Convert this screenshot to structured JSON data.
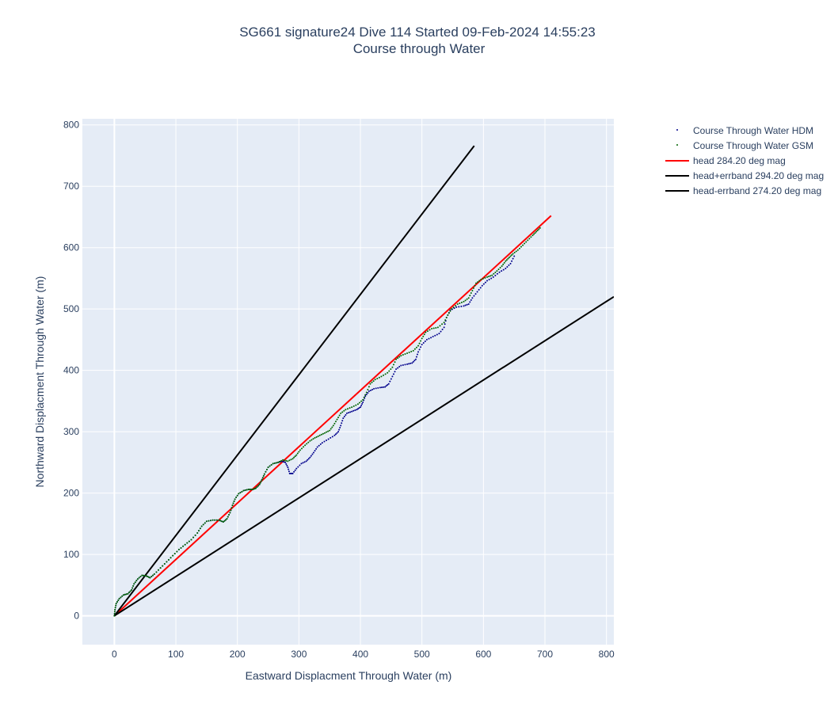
{
  "chart_data": {
    "type": "scatter",
    "title": "SG661 signature24 Dive 114 Started 09-Feb-2024 14:55:23",
    "subtitle": "Course through Water",
    "xlabel": "Eastward Displacment Through Water (m)",
    "ylabel": "Northward Displacment Through Water (m)",
    "xlim": [
      -52,
      812
    ],
    "ylim": [
      -47,
      810
    ],
    "xticks": [
      0,
      100,
      200,
      300,
      400,
      500,
      600,
      700,
      800
    ],
    "yticks": [
      0,
      100,
      200,
      300,
      400,
      500,
      600,
      700,
      800
    ],
    "grid": true,
    "legend_position": "top-right",
    "series": [
      {
        "name": "Course Through Water HDM",
        "mode": "markers",
        "color": "#00008b",
        "points": [
          [
            0,
            0
          ],
          [
            1,
            10
          ],
          [
            3,
            20
          ],
          [
            8,
            28
          ],
          [
            15,
            34
          ],
          [
            22,
            36
          ],
          [
            28,
            42
          ],
          [
            32,
            52
          ],
          [
            38,
            60
          ],
          [
            45,
            66
          ],
          [
            52,
            65
          ],
          [
            58,
            62
          ],
          [
            65,
            68
          ],
          [
            75,
            78
          ],
          [
            85,
            88
          ],
          [
            95,
            98
          ],
          [
            105,
            108
          ],
          [
            115,
            116
          ],
          [
            125,
            124
          ],
          [
            135,
            135
          ],
          [
            142,
            146
          ],
          [
            150,
            154
          ],
          [
            160,
            156
          ],
          [
            170,
            156
          ],
          [
            177,
            153
          ],
          [
            183,
            158
          ],
          [
            188,
            168
          ],
          [
            192,
            180
          ],
          [
            196,
            190
          ],
          [
            202,
            199
          ],
          [
            210,
            204
          ],
          [
            218,
            206
          ],
          [
            225,
            206
          ],
          [
            230,
            208
          ],
          [
            236,
            214
          ],
          [
            240,
            222
          ],
          [
            244,
            231
          ],
          [
            250,
            242
          ],
          [
            258,
            248
          ],
          [
            266,
            250
          ],
          [
            272,
            252
          ],
          [
            278,
            250
          ],
          [
            282,
            242
          ],
          [
            285,
            232
          ],
          [
            290,
            232
          ],
          [
            296,
            240
          ],
          [
            304,
            248
          ],
          [
            312,
            252
          ],
          [
            318,
            258
          ],
          [
            324,
            266
          ],
          [
            330,
            275
          ],
          [
            338,
            282
          ],
          [
            348,
            288
          ],
          [
            358,
            294
          ],
          [
            364,
            300
          ],
          [
            368,
            310
          ],
          [
            372,
            322
          ],
          [
            378,
            330
          ],
          [
            386,
            333
          ],
          [
            394,
            336
          ],
          [
            400,
            340
          ],
          [
            404,
            348
          ],
          [
            408,
            358
          ],
          [
            414,
            366
          ],
          [
            422,
            370
          ],
          [
            432,
            372
          ],
          [
            440,
            373
          ],
          [
            446,
            378
          ],
          [
            452,
            390
          ],
          [
            458,
            402
          ],
          [
            466,
            408
          ],
          [
            476,
            410
          ],
          [
            484,
            412
          ],
          [
            490,
            418
          ],
          [
            494,
            430
          ],
          [
            500,
            442
          ],
          [
            508,
            450
          ],
          [
            518,
            455
          ],
          [
            528,
            460
          ],
          [
            536,
            470
          ],
          [
            540,
            486
          ],
          [
            546,
            498
          ],
          [
            556,
            503
          ],
          [
            568,
            505
          ],
          [
            576,
            508
          ],
          [
            582,
            518
          ],
          [
            590,
            528
          ],
          [
            598,
            538
          ],
          [
            606,
            546
          ],
          [
            616,
            552
          ],
          [
            626,
            560
          ],
          [
            636,
            566
          ],
          [
            644,
            574
          ],
          [
            650,
            586
          ]
        ]
      },
      {
        "name": "Course Through Water GSM",
        "mode": "markers",
        "color": "#006400",
        "points": [
          [
            0,
            0
          ],
          [
            1,
            10
          ],
          [
            3,
            20
          ],
          [
            8,
            28
          ],
          [
            15,
            34
          ],
          [
            22,
            36
          ],
          [
            28,
            42
          ],
          [
            32,
            52
          ],
          [
            38,
            60
          ],
          [
            45,
            66
          ],
          [
            52,
            65
          ],
          [
            58,
            62
          ],
          [
            65,
            68
          ],
          [
            75,
            78
          ],
          [
            85,
            88
          ],
          [
            95,
            98
          ],
          [
            105,
            108
          ],
          [
            115,
            116
          ],
          [
            125,
            124
          ],
          [
            135,
            135
          ],
          [
            142,
            146
          ],
          [
            150,
            154
          ],
          [
            160,
            156
          ],
          [
            170,
            156
          ],
          [
            177,
            153
          ],
          [
            183,
            158
          ],
          [
            188,
            168
          ],
          [
            192,
            180
          ],
          [
            196,
            190
          ],
          [
            202,
            199
          ],
          [
            210,
            204
          ],
          [
            218,
            206
          ],
          [
            225,
            206
          ],
          [
            230,
            208
          ],
          [
            236,
            214
          ],
          [
            240,
            222
          ],
          [
            244,
            231
          ],
          [
            250,
            242
          ],
          [
            258,
            248
          ],
          [
            266,
            250
          ],
          [
            274,
            254
          ],
          [
            282,
            252
          ],
          [
            290,
            256
          ],
          [
            296,
            262
          ],
          [
            302,
            270
          ],
          [
            310,
            278
          ],
          [
            318,
            285
          ],
          [
            326,
            290
          ],
          [
            334,
            294
          ],
          [
            342,
            298
          ],
          [
            350,
            302
          ],
          [
            356,
            310
          ],
          [
            362,
            320
          ],
          [
            368,
            330
          ],
          [
            376,
            336
          ],
          [
            386,
            340
          ],
          [
            396,
            345
          ],
          [
            404,
            352
          ],
          [
            410,
            364
          ],
          [
            416,
            378
          ],
          [
            424,
            385
          ],
          [
            434,
            390
          ],
          [
            444,
            396
          ],
          [
            452,
            405
          ],
          [
            458,
            418
          ],
          [
            466,
            424
          ],
          [
            476,
            428
          ],
          [
            486,
            432
          ],
          [
            494,
            440
          ],
          [
            500,
            452
          ],
          [
            506,
            462
          ],
          [
            516,
            468
          ],
          [
            526,
            470
          ],
          [
            536,
            478
          ],
          [
            542,
            490
          ],
          [
            548,
            500
          ],
          [
            558,
            508
          ],
          [
            568,
            512
          ],
          [
            576,
            518
          ],
          [
            582,
            530
          ],
          [
            588,
            542
          ],
          [
            596,
            548
          ],
          [
            606,
            552
          ],
          [
            614,
            555
          ],
          [
            622,
            562
          ],
          [
            630,
            570
          ],
          [
            636,
            578
          ],
          [
            642,
            584
          ],
          [
            648,
            590
          ],
          [
            656,
            596
          ],
          [
            664,
            604
          ],
          [
            672,
            612
          ],
          [
            680,
            620
          ],
          [
            686,
            626
          ],
          [
            692,
            632
          ]
        ]
      },
      {
        "name": "head 284.20 deg mag",
        "mode": "lines",
        "color": "#ff0000",
        "points": [
          [
            0,
            0
          ],
          [
            710,
            652
          ]
        ]
      },
      {
        "name": "head+errband 294.20 deg mag",
        "mode": "lines",
        "color": "#000000",
        "points": [
          [
            0,
            0
          ],
          [
            585,
            766
          ]
        ]
      },
      {
        "name": "head-errband 274.20 deg mag",
        "mode": "lines",
        "color": "#000000",
        "points": [
          [
            0,
            0
          ],
          [
            812,
            520
          ]
        ]
      }
    ]
  }
}
